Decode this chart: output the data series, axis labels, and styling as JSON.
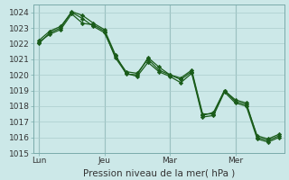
{
  "bg_color": "#cce8e8",
  "grid_color": "#aacccc",
  "line_color": "#1a5c1a",
  "marker": "D",
  "markersize": 2.2,
  "linewidth": 0.9,
  "xlabel": "Pression niveau de la mer( hPa )",
  "ylim": [
    1015,
    1024.5
  ],
  "yticks": [
    1015,
    1016,
    1017,
    1018,
    1019,
    1020,
    1021,
    1022,
    1023,
    1024
  ],
  "xtick_labels": [
    "Lun",
    "Jeu",
    "Mar",
    "Mer"
  ],
  "xtick_positions": [
    0,
    6,
    12,
    18
  ],
  "vline_positions": [
    0,
    6,
    12,
    18
  ],
  "xlabel_fontsize": 7.5,
  "ytick_fontsize": 6.5,
  "xtick_fontsize": 6.5,
  "series": [
    [
      1022.0,
      1022.7,
      1023.0,
      1024.05,
      1023.8,
      1023.3,
      1022.9,
      1021.3,
      1020.05,
      1020.0,
      1021.1,
      1020.5,
      1020.0,
      1019.8,
      1020.3,
      1017.5,
      1017.5,
      1019.0,
      1018.3,
      1018.1,
      1016.1,
      1015.9,
      1016.2
    ],
    [
      1022.1,
      1022.6,
      1022.9,
      1023.9,
      1023.3,
      1023.2,
      1022.8,
      1021.1,
      1020.1,
      1019.9,
      1020.8,
      1020.2,
      1019.9,
      1019.5,
      1020.1,
      1017.3,
      1017.4,
      1018.9,
      1018.2,
      1018.0,
      1015.9,
      1015.7,
      1016.0
    ],
    [
      1022.2,
      1022.8,
      1023.1,
      1024.0,
      1023.6,
      1023.1,
      1022.7,
      1021.2,
      1020.2,
      1020.1,
      1021.0,
      1020.3,
      1020.0,
      1019.7,
      1020.2,
      1017.4,
      1017.6,
      1019.0,
      1018.4,
      1018.2,
      1016.0,
      1015.8,
      1016.1
    ]
  ]
}
